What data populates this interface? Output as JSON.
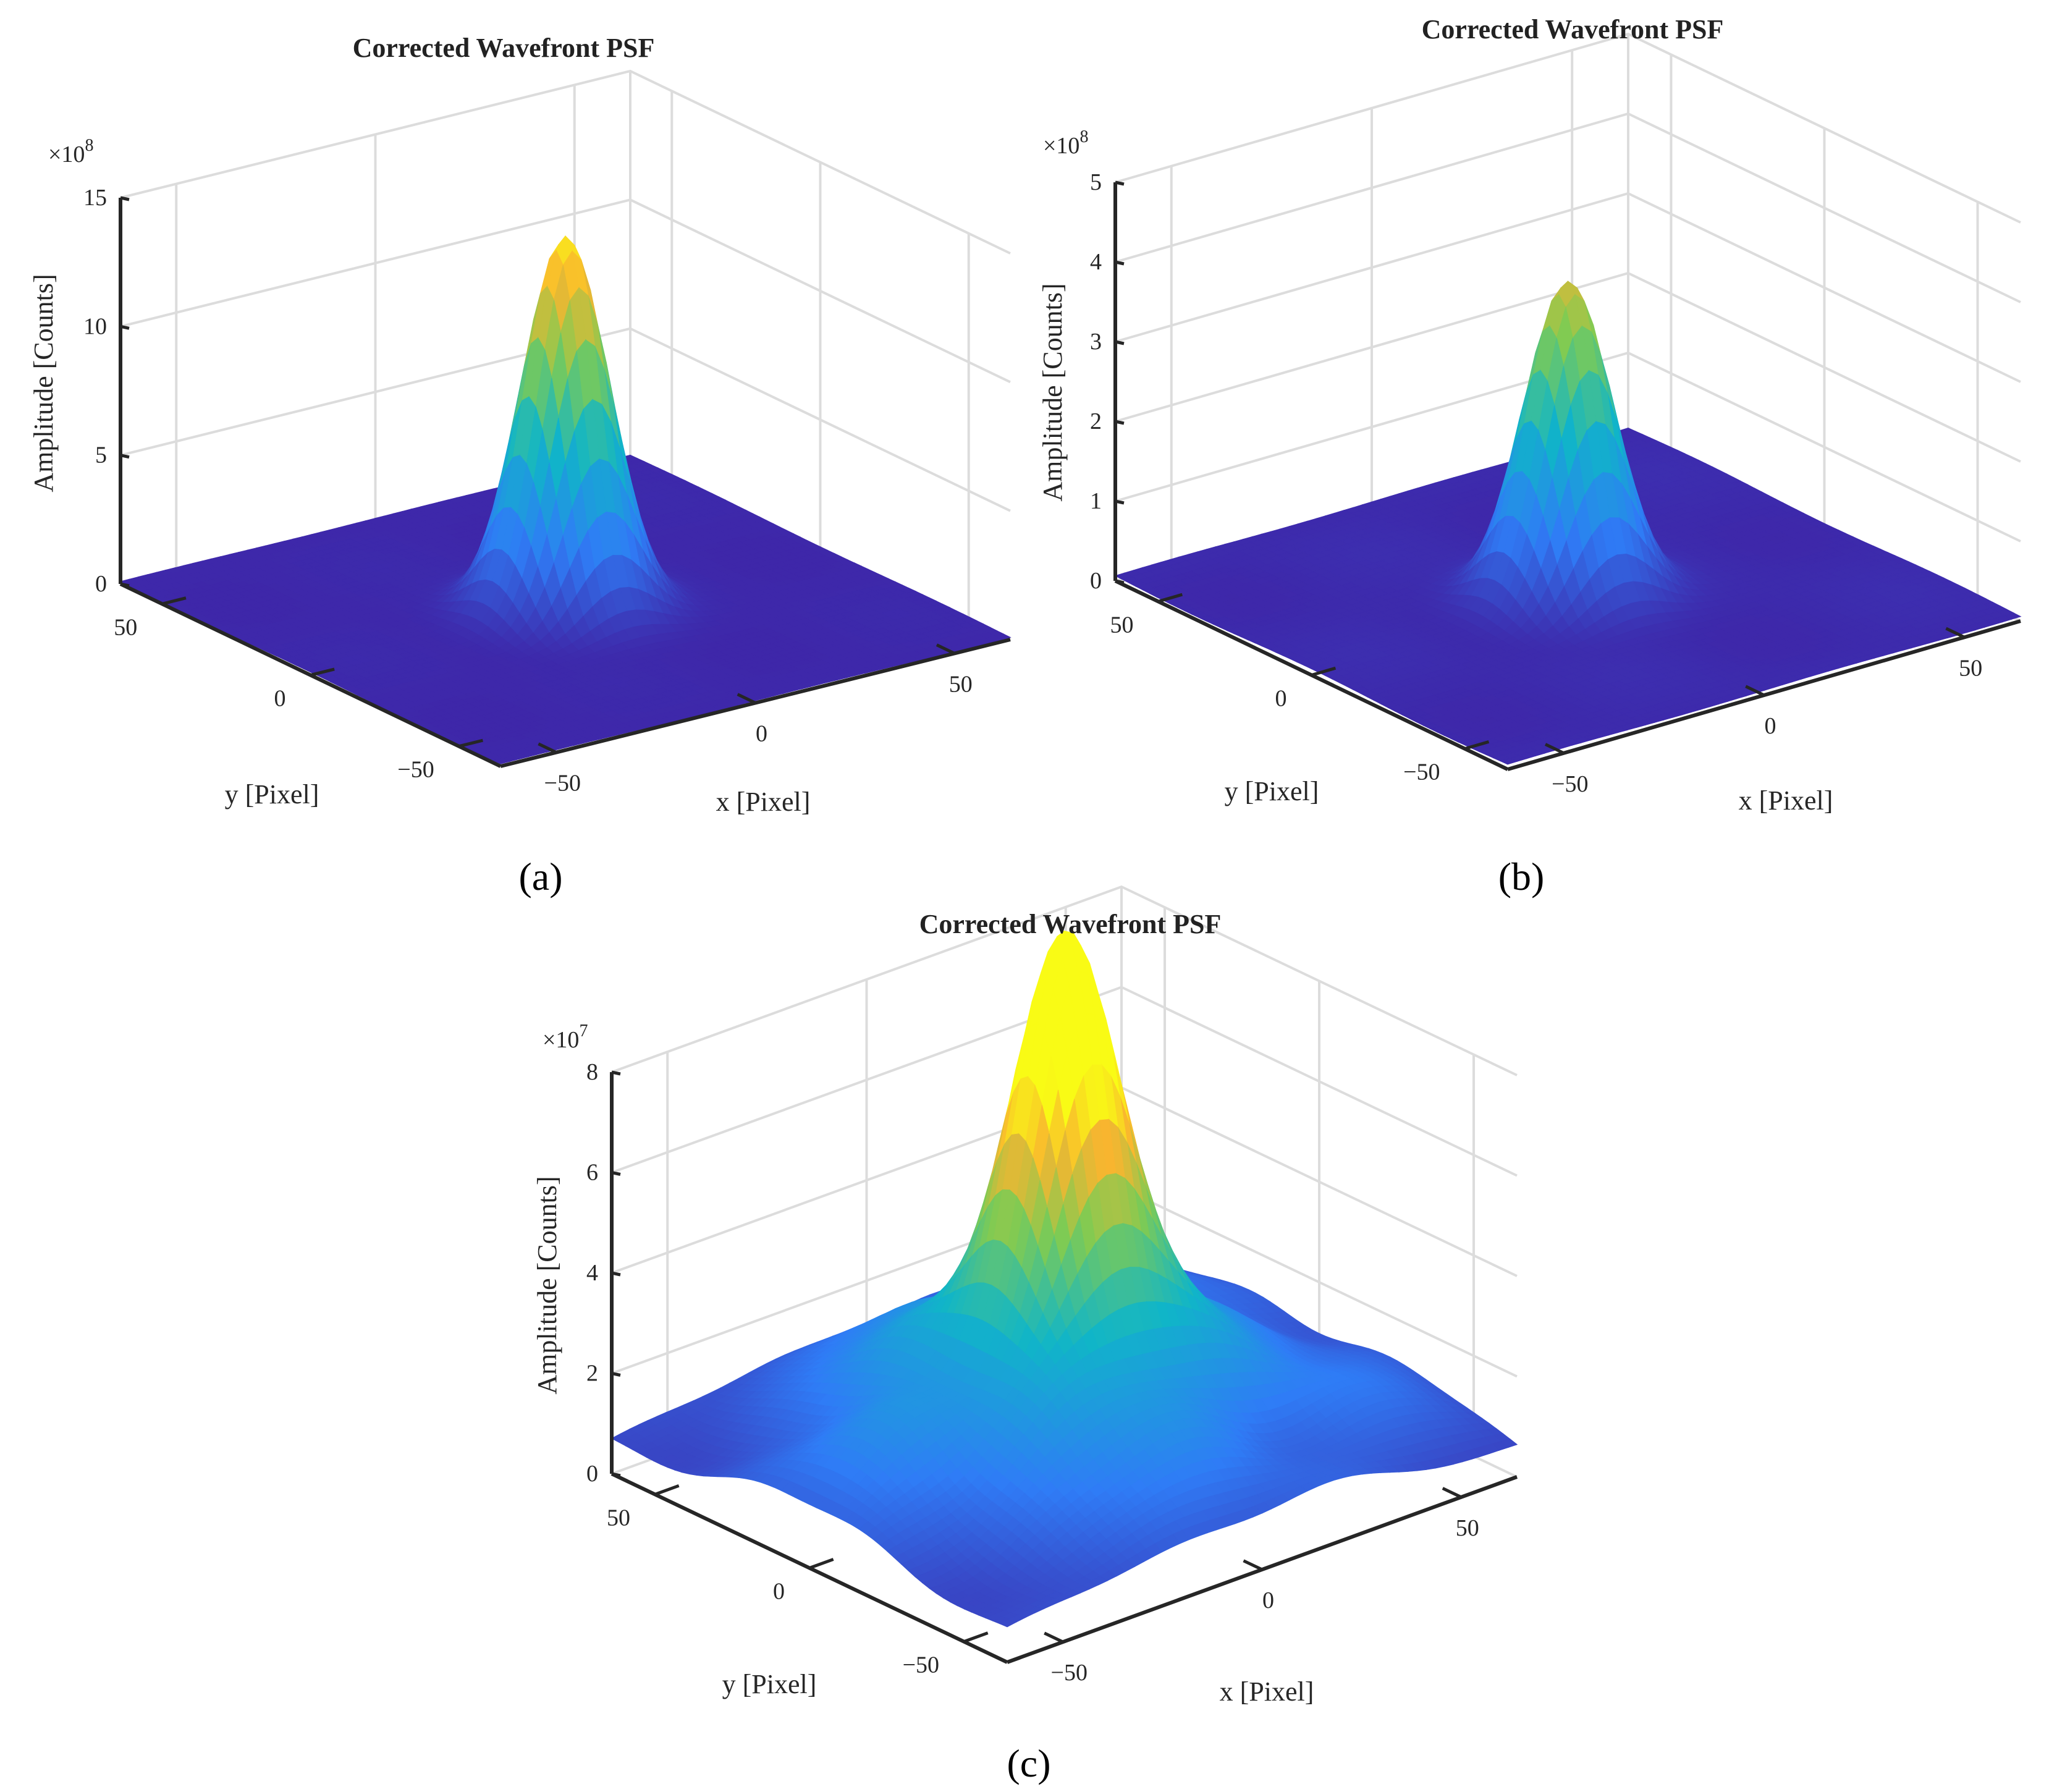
{
  "figure": {
    "captions": [
      "(a)",
      "(b)",
      "(c)"
    ]
  },
  "colors": {
    "low": "#3e26a8",
    "mid_low": "#2f7cf6",
    "mid": "#10b5c8",
    "mid_high": "#7fcb53",
    "high": "#f9b52f",
    "peak": "#f9fb15"
  },
  "chart_data": [
    {
      "type": "surface",
      "panel": "a",
      "title": "Corrected Wavefront PSF",
      "xlabel": "x [Pixel]",
      "ylabel": "y [Pixel]",
      "zlabel": "Amplitude [Counts]",
      "zmultiplier": "×10",
      "zexponent": "8",
      "zticks": [
        "0",
        "5",
        "10",
        "15"
      ],
      "zlim": [
        0,
        15
      ],
      "xticks": [
        "−50",
        "0",
        "50"
      ],
      "yticks": [
        "−50",
        "0",
        "50"
      ],
      "xlim": [
        -64,
        64
      ],
      "ylim": [
        -64,
        64
      ],
      "peak": 14.5,
      "peak_width": 9,
      "background": 0.15,
      "grid": true
    },
    {
      "type": "surface",
      "panel": "b",
      "title": "Corrected Wavefront PSF",
      "xlabel": "x [Pixel]",
      "ylabel": "y [Pixel]",
      "zlabel": "Amplitude [Counts]",
      "zmultiplier": "×10",
      "zexponent": "8",
      "zticks": [
        "0",
        "1",
        "2",
        "3",
        "4",
        "5"
      ],
      "zlim": [
        0,
        5
      ],
      "xticks": [
        "−50",
        "0",
        "50"
      ],
      "yticks": [
        "−50",
        "0",
        "50"
      ],
      "xlim": [
        -64,
        64
      ],
      "ylim": [
        -64,
        64
      ],
      "peak": 3.95,
      "peak_width": 9,
      "background": 0.1,
      "grid": true
    },
    {
      "type": "surface",
      "panel": "c",
      "title": "Corrected Wavefront PSF",
      "xlabel": "x [Pixel]",
      "ylabel": "y [Pixel]",
      "zlabel": "Amplitude [Counts]",
      "zmultiplier": "×10",
      "zexponent": "7",
      "zticks": [
        "0",
        "2",
        "4",
        "6",
        "8"
      ],
      "zlim": [
        0,
        8
      ],
      "xticks": [
        "−50",
        "0",
        "50"
      ],
      "yticks": [
        "−50",
        "0",
        "50"
      ],
      "xlim": [
        -64,
        64
      ],
      "ylim": [
        -64,
        64
      ],
      "peak": 7.0,
      "peak_width": 11,
      "halo": 3.0,
      "halo_width": 38,
      "background": 0.8,
      "grid": true
    }
  ]
}
